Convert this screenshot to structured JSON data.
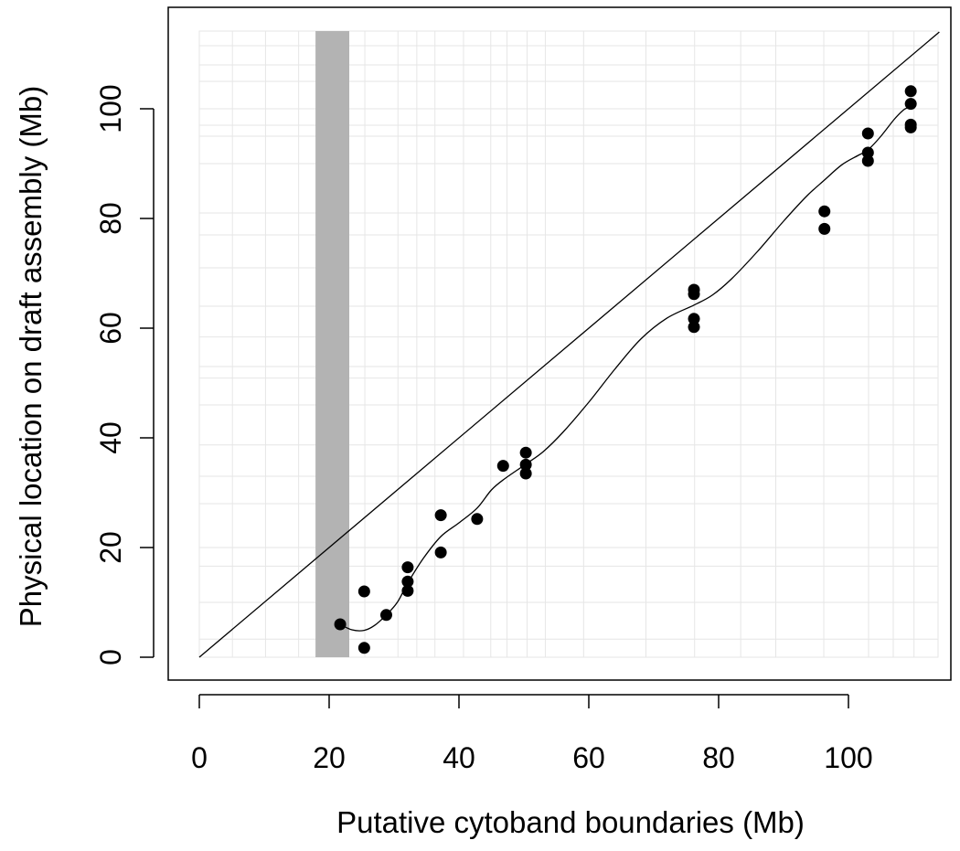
{
  "chart_data": {
    "type": "scatter",
    "xlabel": "Putative cytoband boundaries (Mb)",
    "ylabel": "Physical location on draft assembly (Mb)",
    "xlim": [
      -4.5,
      114
    ],
    "ylim": [
      -4.5,
      116
    ],
    "x_ticks": [
      0,
      20,
      40,
      60,
      80,
      100
    ],
    "y_ticks": [
      0,
      20,
      40,
      60,
      80,
      100
    ],
    "x_tick_labels": [
      "0",
      "20",
      "40",
      "60",
      "80",
      "100"
    ],
    "y_tick_labels": [
      "0",
      "20",
      "40",
      "60",
      "80",
      "100"
    ],
    "vertical_grid": [
      0,
      5.1,
      10.2,
      15.3,
      20.4,
      25.5,
      30.6,
      33.5,
      36.3,
      40.7,
      44.9,
      47.4,
      50.5,
      53.3,
      59.2,
      68.8,
      76.3,
      83.4,
      88.8,
      96.2,
      103.1,
      106.9,
      110.1
    ],
    "horizontal_grid": [
      3.3,
      10,
      16.6,
      20,
      28,
      33,
      38.7,
      46,
      50.9,
      53,
      58.4,
      64,
      71,
      77,
      81,
      90,
      95,
      97,
      100,
      105,
      108,
      111.5
    ],
    "grid": true,
    "shaded_band": {
      "x_start": 17.9,
      "x_end": 23.1,
      "color": "#b3b3b3"
    },
    "reference_line": {
      "slope": 1,
      "intercept": 0
    },
    "points": [
      {
        "x": 21.7,
        "y": 6.0
      },
      {
        "x": 25.4,
        "y": 1.7
      },
      {
        "x": 25.4,
        "y": 12.0
      },
      {
        "x": 28.8,
        "y": 7.7
      },
      {
        "x": 32.1,
        "y": 12.1
      },
      {
        "x": 32.1,
        "y": 13.8
      },
      {
        "x": 32.1,
        "y": 16.4
      },
      {
        "x": 37.2,
        "y": 19.1
      },
      {
        "x": 37.2,
        "y": 25.9
      },
      {
        "x": 42.8,
        "y": 25.2
      },
      {
        "x": 46.8,
        "y": 34.9
      },
      {
        "x": 50.3,
        "y": 33.5
      },
      {
        "x": 50.3,
        "y": 35.1
      },
      {
        "x": 50.3,
        "y": 37.3
      },
      {
        "x": 76.2,
        "y": 60.2
      },
      {
        "x": 76.2,
        "y": 61.7
      },
      {
        "x": 76.2,
        "y": 66.2
      },
      {
        "x": 76.2,
        "y": 67.0
      },
      {
        "x": 96.3,
        "y": 78.1
      },
      {
        "x": 96.3,
        "y": 81.3
      },
      {
        "x": 103.0,
        "y": 90.5
      },
      {
        "x": 103.0,
        "y": 92.0
      },
      {
        "x": 103.0,
        "y": 95.5
      },
      {
        "x": 109.6,
        "y": 96.6
      },
      {
        "x": 109.6,
        "y": 97.1
      },
      {
        "x": 109.6,
        "y": 100.9
      },
      {
        "x": 109.6,
        "y": 103.2
      }
    ],
    "smooth_line": [
      {
        "x": 21.7,
        "y": 6.0
      },
      {
        "x": 23.5,
        "y": 5.0
      },
      {
        "x": 25.4,
        "y": 4.9
      },
      {
        "x": 27.0,
        "y": 5.8
      },
      {
        "x": 28.8,
        "y": 7.7
      },
      {
        "x": 30.5,
        "y": 10.0
      },
      {
        "x": 32.1,
        "y": 13.5
      },
      {
        "x": 34.5,
        "y": 18.0
      },
      {
        "x": 37.2,
        "y": 22.0
      },
      {
        "x": 40.0,
        "y": 24.5
      },
      {
        "x": 42.8,
        "y": 27.2
      },
      {
        "x": 45.0,
        "y": 30.5
      },
      {
        "x": 47.0,
        "y": 32.5
      },
      {
        "x": 50.3,
        "y": 35.2
      },
      {
        "x": 53.0,
        "y": 37.5
      },
      {
        "x": 56.0,
        "y": 41.0
      },
      {
        "x": 60.0,
        "y": 46.5
      },
      {
        "x": 64.0,
        "y": 52.5
      },
      {
        "x": 68.0,
        "y": 58.0
      },
      {
        "x": 72.0,
        "y": 61.8
      },
      {
        "x": 76.2,
        "y": 64.2
      },
      {
        "x": 79.0,
        "y": 66.0
      },
      {
        "x": 82.0,
        "y": 69.0
      },
      {
        "x": 86.0,
        "y": 74.0
      },
      {
        "x": 90.0,
        "y": 79.5
      },
      {
        "x": 93.5,
        "y": 84.0
      },
      {
        "x": 96.3,
        "y": 87.0
      },
      {
        "x": 99.0,
        "y": 89.8
      },
      {
        "x": 101.5,
        "y": 91.5
      },
      {
        "x": 103.0,
        "y": 92.5
      },
      {
        "x": 105.0,
        "y": 95.0
      },
      {
        "x": 107.0,
        "y": 98.0
      },
      {
        "x": 108.5,
        "y": 99.8
      },
      {
        "x": 109.6,
        "y": 100.4
      }
    ]
  }
}
